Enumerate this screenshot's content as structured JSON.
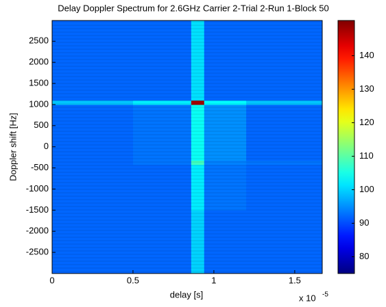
{
  "chart_data": {
    "type": "heatmap",
    "title": "Delay Doppler Spectrum for 2.6GHz Carrier 2-Trial 2-Run 1-Block 50",
    "xlabel": "delay [s]",
    "ylabel": "Doppler shift [Hz]",
    "x_multiplier": "x 10",
    "x_exponent": "-5",
    "xlim": [
      0,
      1.67
    ],
    "xticks": [
      0,
      0.5,
      1,
      1.5
    ],
    "ylim": [
      -3000,
      2990
    ],
    "yticks": [
      -2500,
      -2000,
      -1500,
      -1000,
      -500,
      0,
      500,
      1000,
      1500,
      2000,
      2500
    ],
    "x_edges": [
      0,
      0.5,
      0.86,
      0.94,
      1.2,
      1.67
    ],
    "y_edges": [
      -3000,
      -1500,
      -420,
      -320,
      1000,
      1100,
      2990
    ],
    "z": [
      [
        92,
        92,
        100,
        92,
        92
      ],
      [
        92,
        92,
        102,
        93,
        92
      ],
      [
        92,
        93,
        108,
        94,
        93
      ],
      [
        92,
        93,
        104,
        95,
        92
      ],
      [
        99,
        102,
        148,
        103,
        99
      ],
      [
        92,
        92,
        101,
        92,
        92
      ]
    ],
    "clim": [
      75,
      150.5
    ],
    "cticks": [
      80,
      90,
      100,
      110,
      120,
      130,
      140
    ],
    "colormap": "jet"
  }
}
